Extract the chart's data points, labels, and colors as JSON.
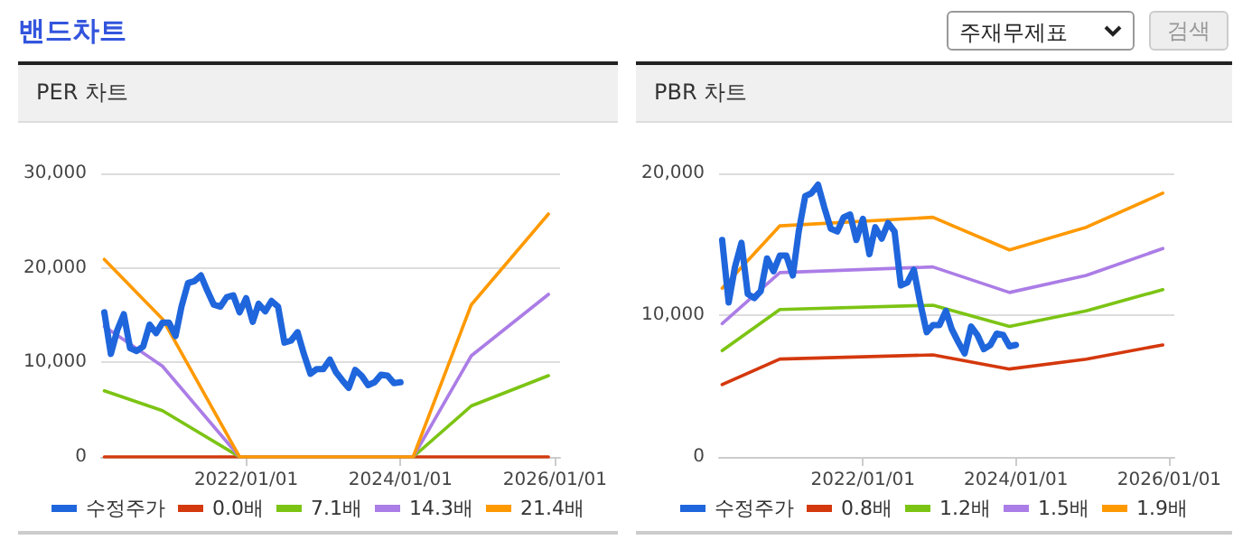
{
  "chart_data": [
    {
      "type": "line",
      "title": "PER 차트",
      "annotations": [
        "밴드차트",
        "주재무제표",
        "검색"
      ],
      "x": [
        "2020-03",
        "2020-12",
        "2021-12",
        "2024-03",
        "2024-12",
        "2025-12"
      ],
      "series": [
        {
          "name": "수정주가",
          "color": "#1f66dc",
          "x": [
            "2020-03",
            "2020-04",
            "2020-05",
            "2020-06",
            "2020-07",
            "2020-08",
            "2020-09",
            "2020-10",
            "2020-11",
            "2020-12",
            "2021-01",
            "2021-02",
            "2021-03",
            "2021-04",
            "2021-05",
            "2021-06",
            "2021-07",
            "2021-08",
            "2021-09",
            "2021-10",
            "2021-11",
            "2021-12",
            "2022-01",
            "2022-02",
            "2022-03",
            "2022-04",
            "2022-05",
            "2022-06",
            "2022-07",
            "2022-08",
            "2022-09",
            "2022-10",
            "2022-11",
            "2022-12",
            "2023-01",
            "2023-02",
            "2023-03",
            "2023-04",
            "2023-05",
            "2023-06",
            "2023-07",
            "2023-08",
            "2023-09",
            "2023-10",
            "2023-11",
            "2023-12",
            "2024-01"
          ],
          "values": [
            15300,
            10900,
            13400,
            15100,
            11500,
            11200,
            11700,
            14000,
            13100,
            14200,
            14200,
            12800,
            15900,
            18400,
            18600,
            19200,
            17600,
            16100,
            15900,
            16900,
            17100,
            15300,
            16800,
            14300,
            16200,
            15400,
            16500,
            15900,
            12100,
            12300,
            13200,
            10900,
            8800,
            9300,
            9300,
            10300,
            9000,
            8100,
            7300,
            9200,
            8600,
            7600,
            7900,
            8700,
            8600,
            7800,
            7900
          ]
        },
        {
          "name": "0.0배",
          "color": "#d4380d",
          "values": [
            0,
            0,
            0,
            0,
            0,
            0
          ]
        },
        {
          "name": "7.1배",
          "color": "#7cc414",
          "values": [
            7000,
            4900,
            0,
            0,
            5400,
            8600
          ]
        },
        {
          "name": "14.3배",
          "color": "#ab7de6",
          "values": [
            13800,
            9600,
            0,
            0,
            10700,
            17200
          ]
        },
        {
          "name": "21.4배",
          "color": "#ff9900",
          "values": [
            20900,
            14600,
            0,
            0,
            16100,
            25700
          ]
        }
      ],
      "xlim": [
        "2020-02-15",
        "2026-01-25"
      ],
      "xticks": [
        {
          "value": "2022-01-01",
          "label": "2022/01/01"
        },
        {
          "value": "2024-01-01",
          "label": "2024/01/01"
        },
        {
          "value": "2026-01-01",
          "label": "2026/01/01"
        }
      ],
      "ylim": [
        0,
        30000
      ],
      "yticks": [
        {
          "value": 0,
          "label": "0"
        },
        {
          "value": 10000,
          "label": "10,000"
        },
        {
          "value": 20000,
          "label": "20,000"
        },
        {
          "value": 30000,
          "label": "30,000"
        }
      ],
      "grid": "y",
      "legend": "bottom",
      "marker": "none",
      "line_style": "solid"
    },
    {
      "type": "line",
      "title": "PBR 차트",
      "x": [
        "2020-03",
        "2020-12",
        "2022-12",
        "2023-12",
        "2024-12",
        "2025-12"
      ],
      "series": [
        {
          "name": "수정주가",
          "color": "#1f66dc",
          "x": [
            "2020-03",
            "2020-04",
            "2020-05",
            "2020-06",
            "2020-07",
            "2020-08",
            "2020-09",
            "2020-10",
            "2020-11",
            "2020-12",
            "2021-01",
            "2021-02",
            "2021-03",
            "2021-04",
            "2021-05",
            "2021-06",
            "2021-07",
            "2021-08",
            "2021-09",
            "2021-10",
            "2021-11",
            "2021-12",
            "2022-01",
            "2022-02",
            "2022-03",
            "2022-04",
            "2022-05",
            "2022-06",
            "2022-07",
            "2022-08",
            "2022-09",
            "2022-10",
            "2022-11",
            "2022-12",
            "2023-01",
            "2023-02",
            "2023-03",
            "2023-04",
            "2023-05",
            "2023-06",
            "2023-07",
            "2023-08",
            "2023-09",
            "2023-10",
            "2023-11",
            "2023-12",
            "2024-01"
          ],
          "values": [
            15300,
            10900,
            13400,
            15100,
            11500,
            11200,
            11700,
            14000,
            13100,
            14200,
            14200,
            12800,
            15900,
            18400,
            18600,
            19200,
            17600,
            16100,
            15900,
            16900,
            17100,
            15300,
            16800,
            14300,
            16200,
            15400,
            16500,
            15900,
            12100,
            12300,
            13200,
            10900,
            8800,
            9300,
            9300,
            10300,
            9000,
            8100,
            7300,
            9200,
            8600,
            7600,
            7900,
            8700,
            8600,
            7800,
            7900
          ]
        },
        {
          "name": "0.8배",
          "color": "#d4380d",
          "values": [
            5100,
            6900,
            7200,
            6200,
            6900,
            7900
          ]
        },
        {
          "name": "1.2배",
          "color": "#7cc414",
          "values": [
            7500,
            10400,
            10700,
            9200,
            10300,
            11800
          ]
        },
        {
          "name": "1.5배",
          "color": "#ab7de6",
          "values": [
            9400,
            13000,
            13400,
            11600,
            12800,
            14700
          ]
        },
        {
          "name": "1.9배",
          "color": "#ff9900",
          "values": [
            11900,
            16300,
            16900,
            14600,
            16200,
            18600
          ]
        }
      ],
      "xlim": [
        "2020-02-15",
        "2026-01-25"
      ],
      "xticks": [
        {
          "value": "2022-01-01",
          "label": "2022/01/01"
        },
        {
          "value": "2024-01-01",
          "label": "2024/01/01"
        },
        {
          "value": "2026-01-01",
          "label": "2026/01/01"
        }
      ],
      "ylim": [
        0,
        20000
      ],
      "yticks": [
        {
          "value": 0,
          "label": "0"
        },
        {
          "value": 10000,
          "label": "10,000"
        },
        {
          "value": 20000,
          "label": "20,000"
        }
      ],
      "grid": "y",
      "legend": "bottom",
      "marker": "none",
      "line_style": "solid"
    }
  ]
}
